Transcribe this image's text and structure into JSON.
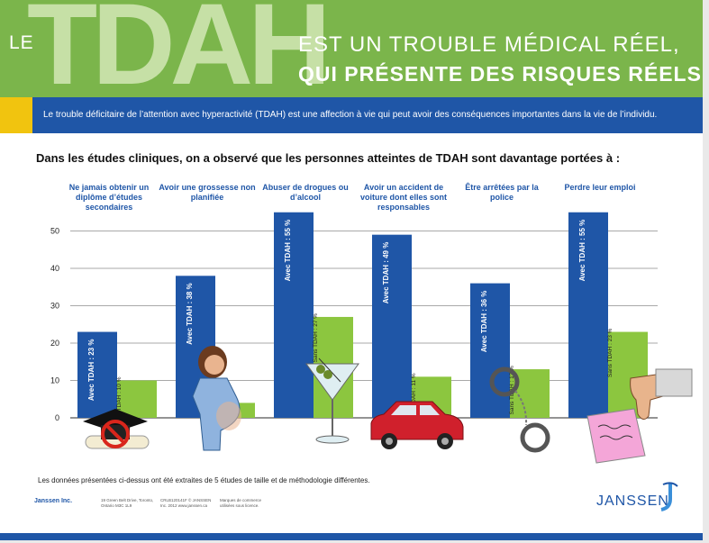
{
  "header": {
    "le": "LE",
    "acronym": "TDAH",
    "line1": "EST UN TROUBLE MÉDICAL RÉEL,",
    "line2": "QUI PRÉSENTE DES RISQUES RÉELS"
  },
  "banner": {
    "text": "Le trouble déficitaire de l’attention avec hyperactivité (TDAH) est une affection à vie qui peut avoir des conséquences importantes dans la vie de l’individu."
  },
  "question": "Dans les études cliniques, on a observé que les personnes atteintes de TDAH sont davantage portées à :",
  "chart_data": {
    "type": "bar",
    "categories": [
      "Ne jamais obtenir un diplôme d’études secondaires",
      "Avoir une grossesse non planifiée",
      "Abuser de drogues ou d’alcool",
      "Avoir un accident de voiture dont elles sont responsables",
      "Être arrêtées par la police",
      "Perdre leur emploi"
    ],
    "series": [
      {
        "name": "Avec TDAH",
        "values": [
          23,
          38,
          55,
          49,
          36,
          55
        ],
        "color": "#1f56a7",
        "labels": [
          "Avec TDAH : 23 %",
          "Avec TDAH : 38 %",
          "Avec TDAH : 55 %",
          "Avec TDAH : 49 %",
          "Avec TDAH : 36 %",
          "Avec TDAH : 55 %"
        ]
      },
      {
        "name": "Sans TDAH",
        "values": [
          10,
          4,
          27,
          11,
          13,
          23
        ],
        "color": "#8cc63f",
        "labels": [
          "Sans TDAH : 10 %",
          "Sans TDAH : 4 %",
          "Sans TDAH : 27 %",
          "Sans TDAH : 11 %",
          "Sans TDAH : 13 %",
          "Sans TDAH : 23 %"
        ]
      }
    ],
    "yticks": [
      0,
      10,
      20,
      30,
      40,
      50
    ],
    "ylim": [
      0,
      55
    ],
    "grid": true,
    "illustrations": [
      "graduation-cap-icon",
      "pregnant-woman-icon",
      "martini-glass-icon",
      "red-car-icon",
      "handcuffs-icon",
      "thumbs-down-icon"
    ]
  },
  "footnote": "Les données présentées ci-dessus ont été extraites de 5 études de taille et de méthodologie différentes.",
  "footer": {
    "brand": "Janssen Inc.",
    "address": "19 Green Belt Drive, Toronto, Ontario M3C 1L9",
    "legal": "CRLB120141F © JANSSEN Inc. 2012 www.janssen.ca",
    "trademark": "Marques de commerce utilisées sous licence.",
    "logo": "JANSSEN"
  },
  "colors": {
    "green": "#7bb54b",
    "blue": "#1f56a7",
    "bar_green": "#8cc63f",
    "yellow": "#f1c40f"
  }
}
